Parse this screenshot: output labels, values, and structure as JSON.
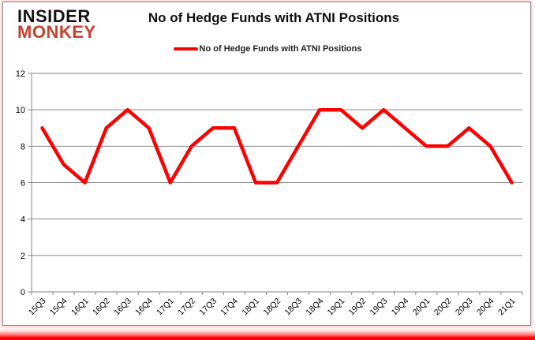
{
  "branding": {
    "line1": "INSIDER",
    "line2": "MONKEY",
    "accent_color": "#c7402e"
  },
  "title": "No of Hedge Funds with ATNI Positions",
  "legend": {
    "label": "No of Hedge Funds with ATNI Positions",
    "color": "#ff0000"
  },
  "chart_data": {
    "type": "line",
    "title": "No of Hedge Funds with ATNI Positions",
    "categories": [
      "15Q3",
      "15Q4",
      "16Q1",
      "16Q2",
      "16Q3",
      "16Q4",
      "17Q1",
      "17Q2",
      "17Q3",
      "17Q4",
      "18Q1",
      "18Q2",
      "18Q3",
      "18Q4",
      "19Q1",
      "19Q2",
      "19Q3",
      "19Q4",
      "20Q1",
      "20Q2",
      "20Q3",
      "20Q4",
      "21Q1"
    ],
    "series": [
      {
        "name": "No of Hedge Funds with ATNI Positions",
        "color": "#ff0000",
        "values": [
          9,
          7,
          6,
          9,
          10,
          9,
          6,
          8,
          9,
          9,
          6,
          6,
          8,
          10,
          10,
          9,
          10,
          9,
          8,
          8,
          9,
          8,
          6
        ]
      }
    ],
    "xlabel": "",
    "ylabel": "",
    "ylim": [
      0,
      12
    ],
    "ytick_step": 2,
    "yticks": [
      0,
      2,
      4,
      6,
      8,
      10,
      12
    ],
    "grid": true,
    "legend_position": "top",
    "colors": {
      "line": "#ff0000",
      "grid": "#858585",
      "axis": "#858585",
      "tick_text": "#000000"
    }
  }
}
